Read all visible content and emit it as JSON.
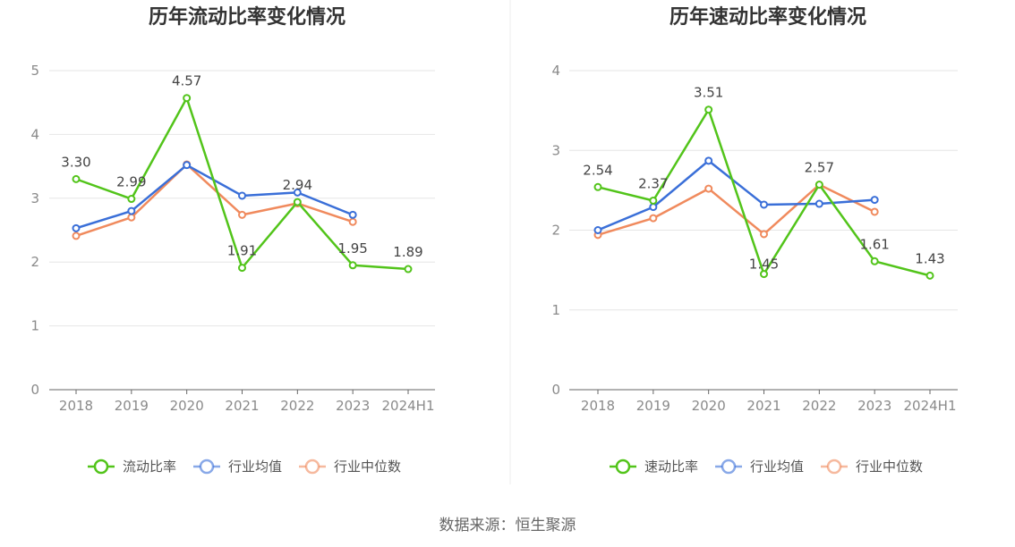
{
  "chart_data": [
    {
      "type": "line",
      "title": "历年流动比率变化情况",
      "categories": [
        "2018",
        "2019",
        "2020",
        "2021",
        "2022",
        "2023",
        "2024H1"
      ],
      "ylim": [
        0,
        5
      ],
      "yticks": [
        0,
        1,
        2,
        3,
        4,
        5
      ],
      "grid": true,
      "legend_position": "bottom",
      "series": [
        {
          "name": "流动比率",
          "color": "#52c41a",
          "labeled": true,
          "values": [
            3.3,
            2.99,
            4.57,
            1.91,
            2.94,
            1.95,
            1.89
          ],
          "labels": [
            "3.30",
            "2.99",
            "4.57",
            "1.91",
            "2.94",
            "1.95",
            "1.89"
          ]
        },
        {
          "name": "行业均值",
          "color": "#3a6fd8",
          "labeled": false,
          "values": [
            2.53,
            2.8,
            3.52,
            3.04,
            3.09,
            2.74,
            null
          ]
        },
        {
          "name": "行业中位数",
          "color": "#f08a5d",
          "labeled": false,
          "values": [
            2.41,
            2.7,
            3.53,
            2.74,
            2.92,
            2.63,
            null
          ]
        }
      ]
    },
    {
      "type": "line",
      "title": "历年速动比率变化情况",
      "categories": [
        "2018",
        "2019",
        "2020",
        "2021",
        "2022",
        "2023",
        "2024H1"
      ],
      "ylim": [
        0,
        4
      ],
      "yticks": [
        0,
        1,
        2,
        3,
        4
      ],
      "grid": true,
      "legend_position": "bottom",
      "series": [
        {
          "name": "速动比率",
          "color": "#52c41a",
          "labeled": true,
          "values": [
            2.54,
            2.37,
            3.51,
            1.45,
            2.57,
            1.61,
            1.43
          ],
          "labels": [
            "2.54",
            "2.37",
            "3.51",
            "1.45",
            "2.57",
            "1.61",
            "1.43"
          ]
        },
        {
          "name": "行业均值",
          "color": "#3a6fd8",
          "labeled": false,
          "values": [
            2.0,
            2.29,
            2.87,
            2.32,
            2.33,
            2.38,
            null
          ]
        },
        {
          "name": "行业中位数",
          "color": "#f08a5d",
          "labeled": false,
          "values": [
            1.94,
            2.15,
            2.52,
            1.95,
            2.57,
            2.23,
            null
          ]
        }
      ]
    }
  ],
  "footer": {
    "source": "数据来源：恒生聚源"
  }
}
